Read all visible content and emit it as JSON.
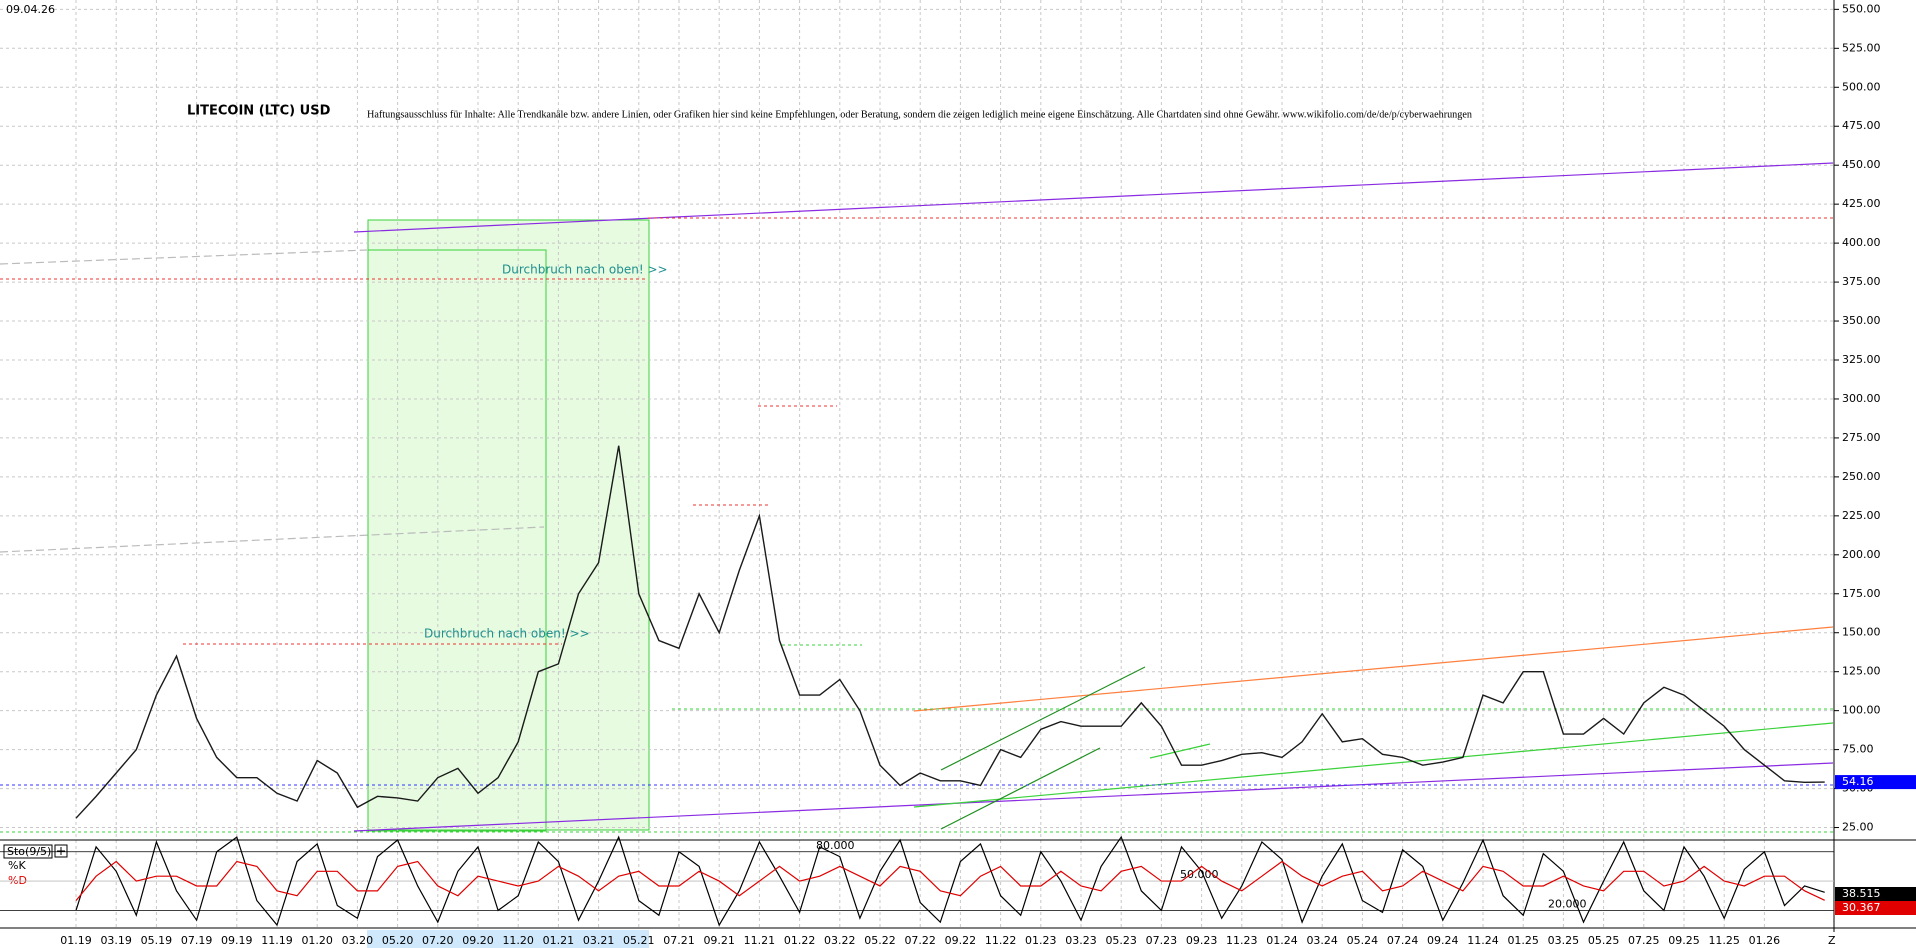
{
  "date": "09.04.26",
  "chart_data": [
    {
      "type": "line",
      "title": "LITECOIN (LTC) USD",
      "subtitle": "Haftungsausschluss für Inhalte: Alle Trendkanäle bzw. andere Linien, oder Grafiken hier sind keine Empfehlungen, oder Beratung, sondern die zeigen lediglich meine eigene Einschätzung. Alle Chartdaten sind ohne Gewähr.  www.wikifolio.com/de/de/p/cyberwaehrungen",
      "annotations": [
        "Durchbruch nach oben! >>",
        "Durchbruch nach oben! >>"
      ],
      "x_end_label": "Z",
      "categories": [
        "01.19",
        null,
        "03.19",
        null,
        "05.19",
        null,
        "07.19",
        null,
        "09.19",
        null,
        "11.19",
        null,
        "01.20",
        null,
        "03.20",
        null,
        "05.20",
        null,
        "07.20",
        null,
        "09.20",
        null,
        "11.20",
        null,
        "01.21",
        null,
        "03.21",
        null,
        "05.21",
        null,
        "07.21",
        null,
        "09.21",
        null,
        "11.21",
        null,
        "01.22",
        null,
        "03.22",
        null,
        "05.22",
        null,
        "07.22",
        null,
        "09.22",
        null,
        "11.22",
        null,
        "01.23",
        null,
        "03.23",
        null,
        "05.23",
        null,
        "07.23",
        null,
        "09.23",
        null,
        "11.23",
        null,
        "01.24",
        null,
        "03.24",
        null,
        "05.24",
        null,
        "07.24",
        null,
        "09.24",
        null,
        "11.24",
        null,
        "01.25",
        null,
        "03.25",
        null,
        "05.25",
        null,
        "07.25",
        null,
        "09.25",
        null,
        "11.25",
        null,
        "01.26",
        null,
        null,
        null
      ],
      "values": [
        31,
        45,
        60,
        75,
        110,
        135,
        95,
        70,
        57,
        57,
        47,
        42,
        68,
        60,
        38,
        45,
        44,
        42,
        57,
        63,
        47,
        57,
        80,
        125,
        130,
        175,
        195,
        270,
        175,
        145,
        140,
        175,
        150,
        190,
        225,
        145,
        110,
        110,
        120,
        100,
        65,
        52,
        60,
        55,
        55,
        52,
        75,
        70,
        88,
        93,
        90,
        90,
        90,
        105,
        90,
        65,
        65,
        68,
        72,
        73,
        70,
        80,
        98,
        80,
        82,
        72,
        70,
        65,
        67,
        70,
        110,
        105,
        125,
        125,
        85,
        85,
        95,
        85,
        105,
        115,
        110,
        100,
        90,
        75,
        65,
        55,
        54,
        54.16
      ],
      "color": "#1a1a1a",
      "last_tag_color": "#0000ff",
      "ylim": [
        17,
        556
      ],
      "yticks": [
        {
          "value": 25,
          "label": "25.00"
        },
        {
          "value": 50,
          "label": "50.00"
        },
        {
          "value": 75,
          "label": "75.00"
        },
        {
          "value": 100,
          "label": "100.00"
        },
        {
          "value": 125,
          "label": "125.00"
        },
        {
          "value": 150,
          "label": "150.00"
        },
        {
          "value": 175,
          "label": "175.00"
        },
        {
          "value": 200,
          "label": "200.00"
        },
        {
          "value": 225,
          "label": "225.00"
        },
        {
          "value": 250,
          "label": "250.00"
        },
        {
          "value": 275,
          "label": "275.00"
        },
        {
          "value": 300,
          "label": "300.00"
        },
        {
          "value": 325,
          "label": "325.00"
        },
        {
          "value": 350,
          "label": "350.00"
        },
        {
          "value": 375,
          "label": "375.00"
        },
        {
          "value": 400,
          "label": "400.00"
        },
        {
          "value": 425,
          "label": "425.00"
        },
        {
          "value": 450,
          "label": "450.00"
        },
        {
          "value": 475,
          "label": "475.00"
        },
        {
          "value": 500,
          "label": "500.00"
        },
        {
          "value": 525,
          "label": "525.00"
        },
        {
          "value": 550,
          "label": "550.00"
        }
      ],
      "grid": true
    },
    {
      "type": "line",
      "title": "Sto(9/5)",
      "series": [
        {
          "name": "%K",
          "color": "#000000",
          "values": [
            20,
            85,
            60,
            15,
            90,
            40,
            10,
            80,
            95,
            30,
            5,
            70,
            88,
            25,
            12,
            75,
            92,
            45,
            8,
            60,
            85,
            20,
            35,
            90,
            70,
            10,
            50,
            95,
            30,
            15,
            80,
            65,
            5,
            40,
            90,
            55,
            18,
            85,
            75,
            12,
            60,
            92,
            28,
            8,
            70,
            88,
            35,
            15,
            80,
            50,
            10,
            65,
            95,
            40,
            20,
            85,
            60,
            12,
            45,
            90,
            72,
            8,
            55,
            88,
            30,
            18,
            82,
            65,
            10,
            48,
            92,
            35,
            15,
            78,
            60,
            8,
            50,
            90,
            40,
            20,
            85,
            55,
            12,
            62,
            80,
            25,
            45,
            38.515
          ]
        },
        {
          "name": "%D",
          "color": "#e00000",
          "values": [
            30,
            55,
            70,
            50,
            55,
            55,
            45,
            45,
            70,
            65,
            40,
            35,
            60,
            60,
            40,
            40,
            65,
            70,
            45,
            35,
            55,
            50,
            45,
            50,
            65,
            55,
            40,
            55,
            60,
            45,
            45,
            60,
            50,
            35,
            50,
            65,
            50,
            55,
            65,
            55,
            45,
            65,
            60,
            40,
            35,
            55,
            65,
            45,
            45,
            60,
            45,
            40,
            60,
            65,
            50,
            50,
            65,
            50,
            40,
            55,
            70,
            55,
            45,
            55,
            60,
            40,
            45,
            60,
            50,
            40,
            65,
            60,
            45,
            45,
            55,
            45,
            40,
            60,
            60,
            45,
            50,
            65,
            50,
            45,
            55,
            55,
            40,
            30.367
          ]
        }
      ],
      "ylim": [
        2,
        91
      ],
      "yticks": [
        {
          "value": 80,
          "label": "80.000"
        },
        {
          "value": 50,
          "label": "50.000"
        },
        {
          "value": 20,
          "label": "20.000"
        }
      ]
    }
  ]
}
